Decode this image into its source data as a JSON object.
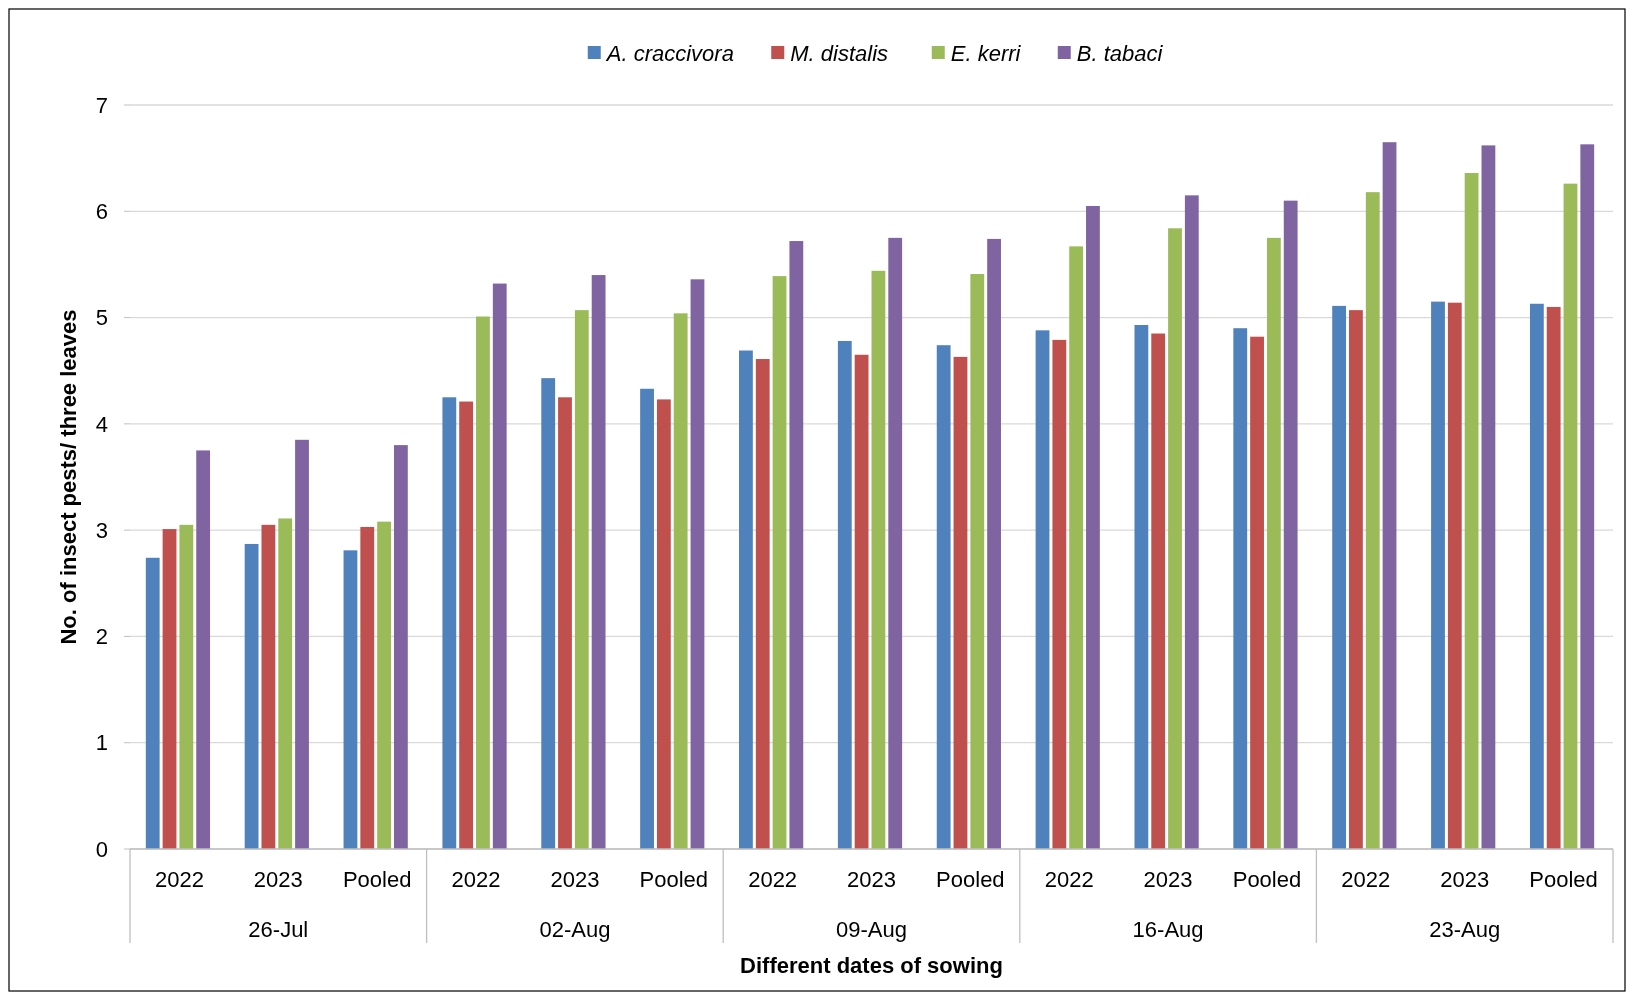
{
  "chart_data": {
    "type": "bar",
    "xlabel": "Different dates of sowing",
    "ylabel": "No. of insect pests/ three leaves",
    "categories": [
      "2022",
      "2023",
      "Pooled",
      "2022",
      "2023",
      "Pooled",
      "2022",
      "2023",
      "Pooled",
      "2022",
      "2023",
      "Pooled",
      "2022",
      "2023",
      "Pooled"
    ],
    "annotations": [
      "26-Jul",
      "02-Aug",
      "09-Aug",
      "16-Aug",
      "23-Aug"
    ],
    "series": [
      {
        "name": "A. craccivora",
        "color": "#4f81bd",
        "values": [
          2.74,
          2.87,
          2.81,
          4.25,
          4.43,
          4.33,
          4.69,
          4.78,
          4.74,
          4.88,
          4.93,
          4.9,
          5.11,
          5.15,
          5.13
        ]
      },
      {
        "name": "M. distalis",
        "color": "#c0504d",
        "values": [
          3.01,
          3.05,
          3.03,
          4.21,
          4.25,
          4.23,
          4.61,
          4.65,
          4.63,
          4.79,
          4.85,
          4.82,
          5.07,
          5.14,
          5.1
        ]
      },
      {
        "name": "E. kerri",
        "color": "#9bbb59",
        "values": [
          3.05,
          3.11,
          3.08,
          5.01,
          5.07,
          5.04,
          5.39,
          5.44,
          5.41,
          5.67,
          5.84,
          5.75,
          6.18,
          6.36,
          6.26
        ]
      },
      {
        "name": "B. tabaci",
        "color": "#8064a2",
        "values": [
          3.75,
          3.85,
          3.8,
          5.32,
          5.4,
          5.36,
          5.72,
          5.75,
          5.74,
          6.05,
          6.15,
          6.1,
          6.65,
          6.62,
          6.63
        ]
      }
    ],
    "ylim": [
      0,
      7
    ],
    "yticks": [
      0,
      1,
      2,
      3,
      4,
      5,
      6,
      7
    ],
    "grid": "y",
    "legend": "top"
  }
}
